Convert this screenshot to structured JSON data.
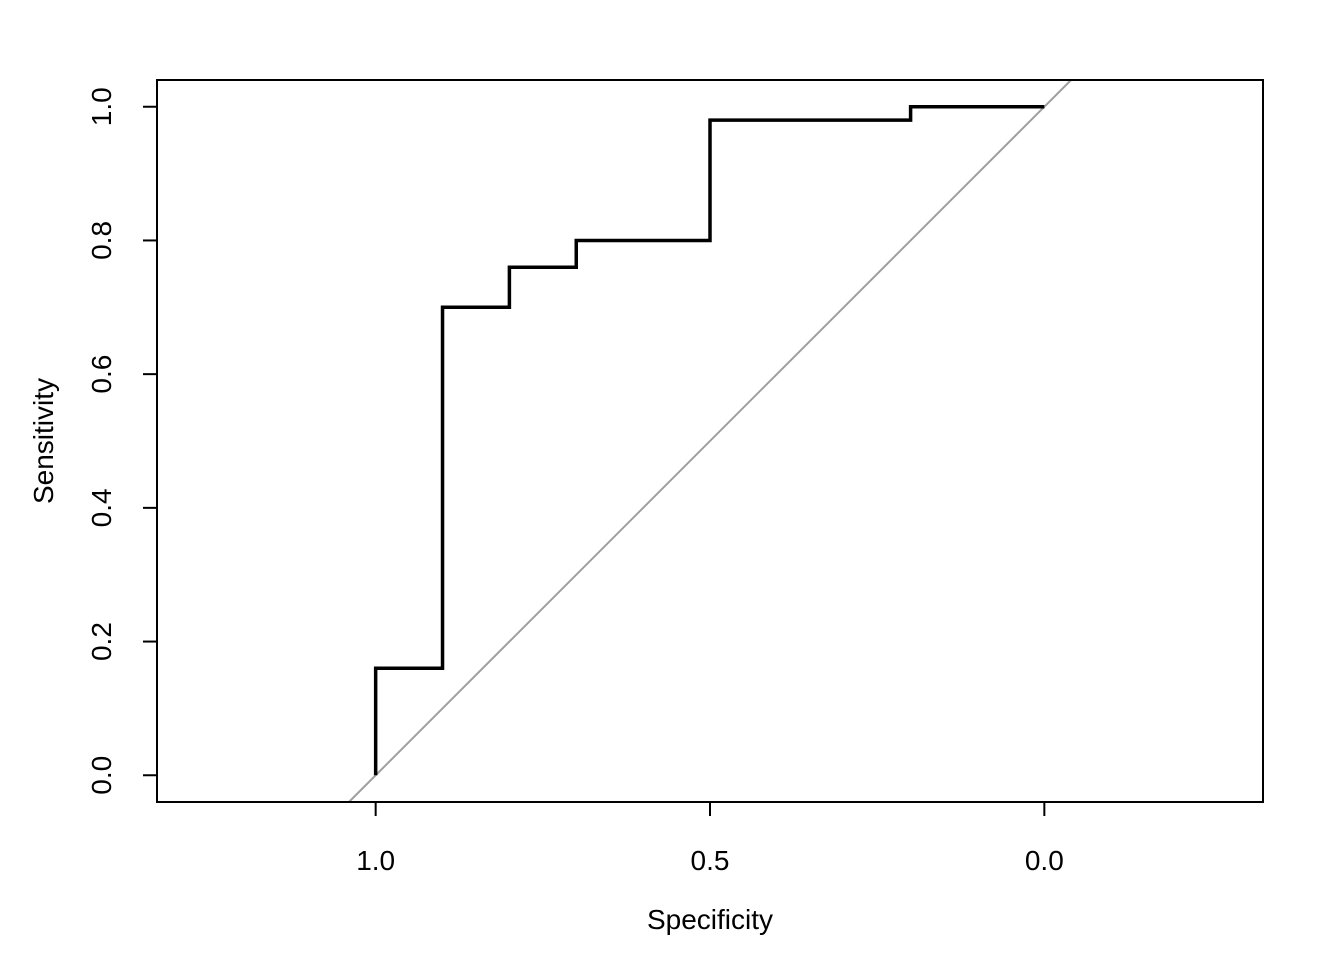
{
  "chart_data": {
    "type": "line",
    "title": "",
    "xlabel": "Specificity",
    "ylabel": "Sensitivity",
    "x_reversed": true,
    "xlim": [
      1.327,
      -0.327
    ],
    "ylim": [
      -0.04,
      1.04
    ],
    "x_ticks": [
      1.0,
      0.5,
      0.0
    ],
    "x_tick_labels": [
      "1.0",
      "0.5",
      "0.0"
    ],
    "y_ticks": [
      0.0,
      0.2,
      0.4,
      0.6,
      0.8,
      1.0
    ],
    "y_tick_labels": [
      "0.0",
      "0.2",
      "0.4",
      "0.6",
      "0.8",
      "1.0"
    ],
    "grid": false,
    "series": [
      {
        "style": "step",
        "color": "#000000",
        "points": [
          {
            "x": 1.0,
            "y": 0.0
          },
          {
            "x": 1.0,
            "y": 0.16
          },
          {
            "x": 0.9,
            "y": 0.16
          },
          {
            "x": 0.9,
            "y": 0.7
          },
          {
            "x": 0.8,
            "y": 0.7
          },
          {
            "x": 0.8,
            "y": 0.76
          },
          {
            "x": 0.7,
            "y": 0.76
          },
          {
            "x": 0.7,
            "y": 0.8
          },
          {
            "x": 0.5,
            "y": 0.8
          },
          {
            "x": 0.5,
            "y": 0.98
          },
          {
            "x": 0.2,
            "y": 0.98
          },
          {
            "x": 0.2,
            "y": 1.0
          },
          {
            "x": 0.0,
            "y": 1.0
          }
        ]
      }
    ],
    "reference_line": {
      "from": [
        1.0,
        0.0
      ],
      "to": [
        0.0,
        1.0
      ],
      "color": "#a0a0a0",
      "extends_to_plot_edges": true
    }
  }
}
